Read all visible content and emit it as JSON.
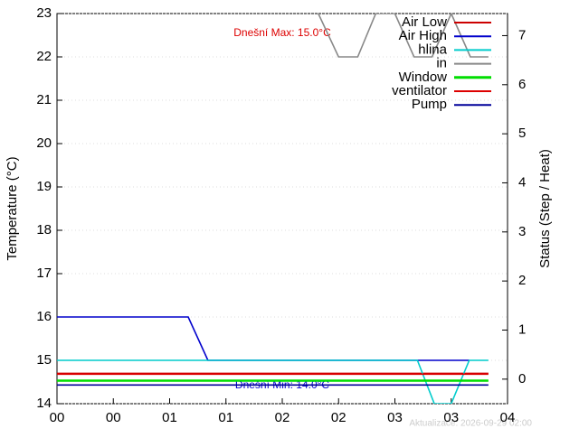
{
  "chart_data": {
    "type": "line",
    "ylabel": "Temperature (°C)",
    "y2label": "Status (Step / Heat)",
    "xlim": [
      0,
      4
    ],
    "ylim": [
      14,
      23
    ],
    "y2lim": [
      -0.5,
      7.45
    ],
    "xticks": [
      {
        "value": 0,
        "label": "00"
      },
      {
        "value": 0.5,
        "label": "00"
      },
      {
        "value": 1,
        "label": "01"
      },
      {
        "value": 1.5,
        "label": "01"
      },
      {
        "value": 2,
        "label": "02"
      },
      {
        "value": 2.5,
        "label": "02"
      },
      {
        "value": 3,
        "label": "03"
      },
      {
        "value": 3.5,
        "label": "03"
      },
      {
        "value": 4,
        "label": "04"
      }
    ],
    "yticks": [
      14,
      15,
      16,
      17,
      18,
      19,
      20,
      21,
      22,
      23
    ],
    "y2ticks": [
      0,
      1,
      2,
      3,
      4,
      5,
      6,
      7
    ],
    "grid": true,
    "legend": "top-right",
    "annotations": [
      "Dnešní Max: 15.0°C",
      "Dnešní Min: 14.0°C",
      "Aktualizace: 2026-09-29 02:00"
    ],
    "series": [
      {
        "name": "Air Low",
        "color": "#cc0000",
        "x": [
          0,
          3.83
        ],
        "values": [
          14.7,
          14.7
        ]
      },
      {
        "name": "Air High",
        "color": "#0000cc",
        "x": [
          0,
          1.165,
          1.34,
          3.2,
          3.66
        ],
        "values": [
          16,
          16,
          15,
          15,
          15
        ]
      },
      {
        "name": "hlina",
        "color": "#00cccc",
        "x": [
          0,
          3.2,
          3.35,
          3.5,
          3.66,
          3.83
        ],
        "values": [
          15,
          15,
          14,
          14,
          15,
          15
        ]
      },
      {
        "name": "in",
        "color": "#888888",
        "x": [
          2.32,
          2.5,
          2.67,
          2.83,
          3.0,
          3.17,
          3.33,
          3.5,
          3.67,
          3.83
        ],
        "values": [
          23,
          22,
          22,
          23,
          23,
          22,
          22,
          23,
          22,
          22
        ]
      },
      {
        "name": "Window",
        "color": "#00dd00",
        "x": [
          0,
          3.83
        ],
        "values": [
          14.53,
          14.53
        ]
      },
      {
        "name": "ventilator",
        "color": "#dd0000",
        "x": [
          0,
          3.83
        ],
        "values": [
          14.68,
          14.68
        ]
      },
      {
        "name": "Pump",
        "color": "#000099",
        "x": [
          0,
          3.83
        ],
        "values": [
          14.43,
          14.43
        ]
      }
    ]
  }
}
